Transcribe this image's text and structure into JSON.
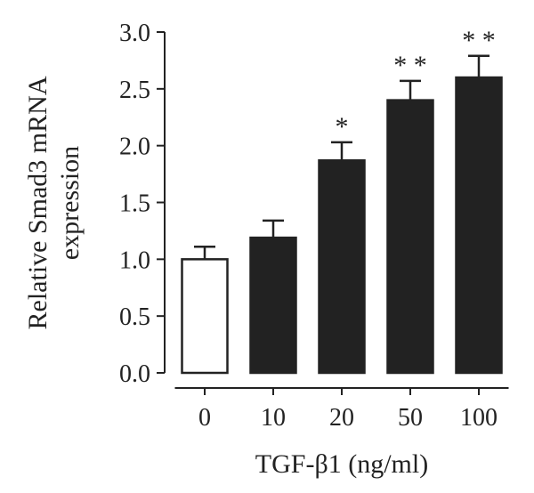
{
  "chart_data": {
    "type": "bar",
    "categories": [
      "0",
      "10",
      "20",
      "50",
      "100"
    ],
    "values": [
      1.0,
      1.19,
      1.87,
      2.4,
      2.6
    ],
    "errors": [
      0.11,
      0.15,
      0.16,
      0.17,
      0.19
    ],
    "significance": [
      "",
      "",
      "*",
      "* *",
      "* *"
    ],
    "bar_colors": [
      "#ffffff",
      "#222222",
      "#222222",
      "#222222",
      "#222222"
    ],
    "xlabel": "TGF-β1 (ng/ml)",
    "ylabel_lines": [
      "Relative Smad3 mRNA",
      "expression"
    ],
    "ylim": [
      0,
      3.0
    ],
    "yticks": [
      0.0,
      0.5,
      1.0,
      1.5,
      2.0,
      2.5,
      3.0
    ],
    "ytick_labels": [
      "0.0",
      "0.5",
      "1.0",
      "1.5",
      "2.0",
      "2.5",
      "3.0"
    ],
    "grid": false,
    "legend": "none"
  }
}
